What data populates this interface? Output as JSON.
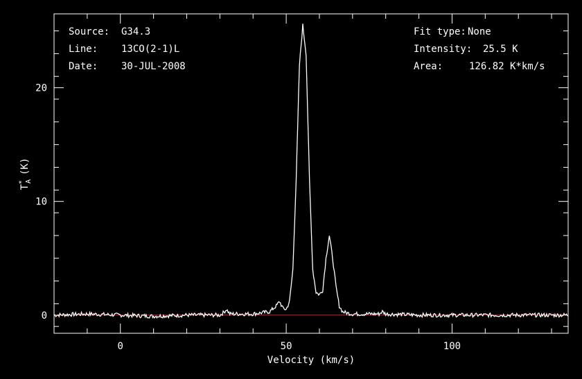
{
  "header": {
    "source_label": "Source:",
    "source_value": "G34.3",
    "line_label": "Line:",
    "line_value": "13CO(2-1)L",
    "date_label": "Date:",
    "date_value": "30-JUL-2008",
    "fit_label": "Fit type:",
    "fit_value": "None",
    "intensity_label": "Intensity:",
    "intensity_value": "25.5 K",
    "area_label": "Area:",
    "area_value": "126.82 K*km/s"
  },
  "colors": {
    "background": "#000000",
    "spectrum": "#ffffff",
    "baseline": "#cc2222",
    "axes": "#ffffff"
  },
  "chart_data": {
    "type": "line",
    "xlabel": "Velocity (km/s)",
    "ylabel_main": "T",
    "ylabel_sup": "*",
    "ylabel_sub": "A",
    "ylabel_unit": "(K)",
    "xlim": [
      -20,
      135
    ],
    "ylim": [
      -1.6,
      26.5
    ],
    "xticks": [
      0,
      50,
      100
    ],
    "yticks": [
      0,
      10,
      20
    ],
    "baseline": 0,
    "series": [
      {
        "x": [
          -20,
          -10,
          0,
          10,
          20,
          30,
          31,
          32,
          33,
          40,
          45,
          47,
          48,
          49,
          50,
          51,
          52,
          53,
          54,
          55,
          56,
          57,
          58,
          59,
          60,
          61,
          62,
          63,
          64,
          65,
          66,
          67,
          68,
          70,
          75,
          78,
          79,
          80,
          90,
          100,
          110,
          120,
          135
        ],
        "y": [
          0,
          0.1,
          0,
          -0.1,
          0,
          0,
          0.2,
          0.5,
          0.1,
          0.1,
          0.3,
          0.8,
          1.2,
          0.6,
          0.5,
          1.2,
          4,
          12,
          22,
          25.5,
          23,
          12,
          4,
          2,
          1.8,
          2.2,
          5,
          7,
          5,
          2.5,
          0.8,
          0.3,
          0.2,
          0.1,
          0.1,
          0.1,
          0.3,
          0.1,
          0,
          0,
          0,
          0,
          0
        ]
      }
    ]
  }
}
